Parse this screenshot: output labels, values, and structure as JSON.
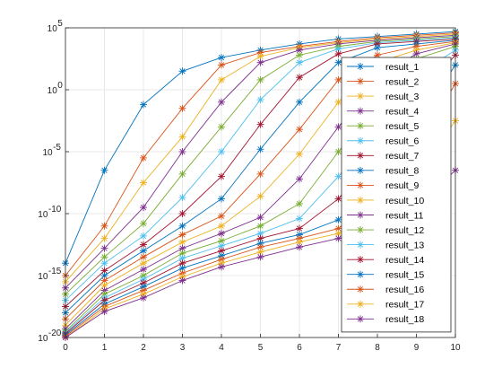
{
  "chart_data": {
    "type": "line",
    "title": "",
    "xlabel": "",
    "ylabel": "",
    "x": [
      0,
      1,
      2,
      3,
      4,
      5,
      6,
      7,
      8,
      9,
      10
    ],
    "xlim": [
      0,
      10
    ],
    "ylim": [
      1e-20,
      100000.0
    ],
    "y_scale": "log",
    "grid": true,
    "legend_position": "right",
    "x_ticks": [
      "0",
      "1",
      "2",
      "3",
      "4",
      "5",
      "6",
      "7",
      "8",
      "9",
      "10"
    ],
    "y_ticks": [
      {
        "base": "10",
        "exp": "5",
        "value": 100000.0
      },
      {
        "base": "10",
        "exp": "0",
        "value": 1
      },
      {
        "base": "10",
        "exp": "-5",
        "value": 1e-05
      },
      {
        "base": "10",
        "exp": "-10",
        "value": 1e-10
      },
      {
        "base": "10",
        "exp": "-15",
        "value": 1e-15
      },
      {
        "base": "10",
        "exp": "-20",
        "value": 1e-20
      }
    ],
    "marker": "asterisk",
    "series": [
      {
        "name": "result_1",
        "color": "#0072BD",
        "y_log10": [
          -14.0,
          -6.5,
          -1.2,
          1.5,
          2.6,
          3.2,
          3.7,
          4.1,
          4.3,
          4.5,
          4.7
        ]
      },
      {
        "name": "result_2",
        "color": "#D95319",
        "y_log10": [
          -15.0,
          -11.0,
          -5.5,
          -1.5,
          2.0,
          3.0,
          3.5,
          3.9,
          4.2,
          4.4,
          4.6
        ]
      },
      {
        "name": "result_3",
        "color": "#EDB120",
        "y_log10": [
          -15.5,
          -12.0,
          -7.5,
          -3.8,
          0.8,
          2.7,
          3.4,
          3.8,
          4.1,
          4.3,
          4.5
        ]
      },
      {
        "name": "result_4",
        "color": "#7E2F8E",
        "y_log10": [
          -16.0,
          -12.8,
          -9.5,
          -5.0,
          -1.0,
          2.2,
          3.2,
          3.7,
          4.0,
          4.2,
          4.4
        ]
      },
      {
        "name": "result_5",
        "color": "#77AC30",
        "y_log10": [
          -16.5,
          -13.5,
          -10.8,
          -6.8,
          -3.0,
          0.8,
          2.8,
          3.5,
          3.9,
          4.1,
          4.3
        ]
      },
      {
        "name": "result_6",
        "color": "#4DBEEE",
        "y_log10": [
          -17.0,
          -14.0,
          -11.8,
          -8.7,
          -5.0,
          -0.8,
          2.2,
          3.3,
          3.8,
          4.0,
          4.2
        ]
      },
      {
        "name": "result_7",
        "color": "#A2142F",
        "y_log10": [
          -17.5,
          -14.6,
          -12.5,
          -10.0,
          -7.0,
          -2.8,
          1.0,
          2.9,
          3.7,
          3.9,
          4.1
        ]
      },
      {
        "name": "result_8",
        "color": "#0072BD",
        "y_log10": [
          -18.0,
          -15.0,
          -13.0,
          -11.0,
          -8.8,
          -4.8,
          -1.0,
          2.2,
          3.4,
          3.7,
          4.0
        ]
      },
      {
        "name": "result_9",
        "color": "#D95319",
        "y_log10": [
          -18.5,
          -15.4,
          -13.5,
          -11.7,
          -10.2,
          -6.8,
          -3.2,
          0.8,
          2.8,
          3.5,
          3.9
        ]
      },
      {
        "name": "result_10",
        "color": "#EDB120",
        "y_log10": [
          -19.0,
          -15.8,
          -14.0,
          -12.3,
          -11.0,
          -8.6,
          -5.2,
          -1.0,
          2.2,
          3.2,
          3.8
        ]
      },
      {
        "name": "result_11",
        "color": "#7E2F8E",
        "y_log10": [
          -19.3,
          -16.2,
          -14.5,
          -12.8,
          -11.6,
          -10.3,
          -7.2,
          -3.0,
          1.0,
          2.9,
          3.7
        ]
      },
      {
        "name": "result_12",
        "color": "#77AC30",
        "y_log10": [
          -19.5,
          -16.5,
          -15.0,
          -13.2,
          -12.2,
          -11.0,
          -9.2,
          -5.0,
          -1.0,
          2.5,
          3.5
        ]
      },
      {
        "name": "result_13",
        "color": "#4DBEEE",
        "y_log10": [
          -19.6,
          -16.8,
          -15.3,
          -13.6,
          -12.6,
          -11.6,
          -10.4,
          -7.0,
          -3.0,
          1.2,
          3.2
        ]
      },
      {
        "name": "result_14",
        "color": "#A2142F",
        "y_log10": [
          -19.7,
          -17.0,
          -15.6,
          -14.0,
          -13.0,
          -12.0,
          -11.2,
          -8.8,
          -5.0,
          -0.8,
          2.8
        ]
      },
      {
        "name": "result_15",
        "color": "#0072BD",
        "y_log10": [
          -19.8,
          -17.3,
          -15.9,
          -14.4,
          -13.4,
          -12.4,
          -11.7,
          -10.5,
          -7.0,
          -2.8,
          2.0
        ]
      },
      {
        "name": "result_16",
        "color": "#D95319",
        "y_log10": [
          -19.9,
          -17.5,
          -16.2,
          -14.8,
          -13.7,
          -12.7,
          -12.0,
          -11.2,
          -8.8,
          -4.8,
          0.5
        ]
      },
      {
        "name": "result_17",
        "color": "#EDB120",
        "y_log10": [
          -20.0,
          -17.7,
          -16.5,
          -15.1,
          -14.0,
          -13.1,
          -12.3,
          -11.6,
          -10.5,
          -7.0,
          -2.5
        ]
      },
      {
        "name": "result_18",
        "color": "#7E2F8E",
        "y_log10": [
          -20.0,
          -17.9,
          -16.8,
          -15.4,
          -14.3,
          -13.5,
          -12.7,
          -12.0,
          -11.3,
          -9.5,
          -6.5
        ]
      }
    ]
  }
}
